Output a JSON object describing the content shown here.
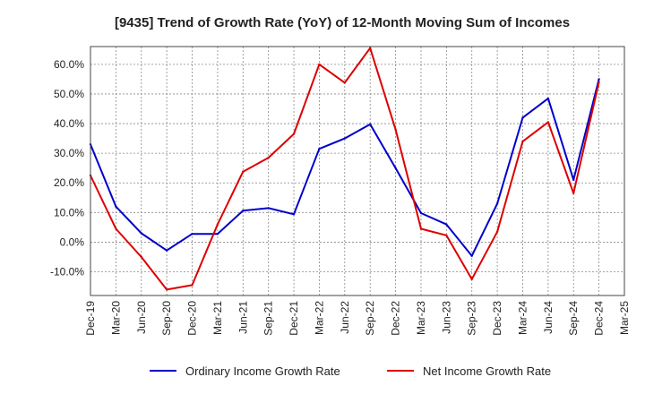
{
  "chart_data": {
    "type": "line",
    "title": "[9435]  Trend of Growth Rate (YoY) of 12-Month Moving Sum of Incomes",
    "xlabel": "",
    "ylabel": "",
    "x": [
      "Dec-19",
      "Mar-20",
      "Jun-20",
      "Sep-20",
      "Dec-20",
      "Mar-21",
      "Jun-21",
      "Sep-21",
      "Dec-21",
      "Mar-22",
      "Jun-22",
      "Sep-22",
      "Dec-22",
      "Mar-23",
      "Jun-23",
      "Sep-23",
      "Dec-23",
      "Mar-24",
      "Jun-24",
      "Sep-24",
      "Dec-24",
      "Mar-25"
    ],
    "yticks": [
      "60.0%",
      "50.0%",
      "40.0%",
      "30.0%",
      "20.0%",
      "10.0%",
      "0.0%",
      "-10.0%"
    ],
    "ylim": [
      -18,
      66
    ],
    "grid": true,
    "legend_position": "bottom",
    "series": [
      {
        "name": "Ordinary Income Growth Rate",
        "color": "#0000cc",
        "values": [
          33.0,
          12.0,
          3.0,
          -2.8,
          2.8,
          2.8,
          10.6,
          11.5,
          9.4,
          31.5,
          35.0,
          39.8,
          25.0,
          9.8,
          6.0,
          -4.6,
          13.0,
          42.0,
          48.5,
          21.0,
          55.0,
          null
        ]
      },
      {
        "name": "Net Income Growth Rate",
        "color": "#dd0000",
        "values": [
          22.5,
          4.5,
          -5.0,
          -16.0,
          -14.5,
          6.0,
          23.8,
          28.5,
          36.5,
          60.0,
          53.8,
          65.5,
          38.0,
          4.5,
          2.3,
          -12.5,
          3.5,
          34.0,
          40.5,
          16.5,
          54.0,
          null
        ]
      }
    ]
  }
}
